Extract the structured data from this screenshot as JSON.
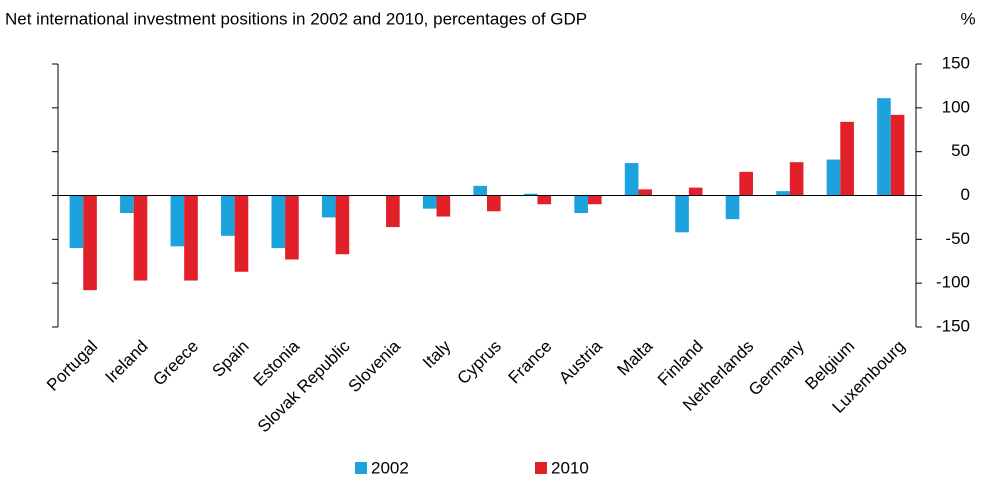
{
  "chart_data": {
    "type": "bar",
    "title": "Net international investment positions in 2002 and 2010, percentages of GDP",
    "y_unit": "%",
    "categories": [
      "Portugal",
      "Ireland",
      "Greece",
      "Spain",
      "Estonia",
      "Slovak Republic",
      "Slovenia",
      "Italy",
      "Cyprus",
      "France",
      "Austria",
      "Malta",
      "Finland",
      "Netherlands",
      "Germany",
      "Belgium",
      "Luxembourg"
    ],
    "series": [
      {
        "name": "2002",
        "color": "#1ca3dd",
        "values": [
          -60,
          -20,
          -58,
          -46,
          -60,
          -25,
          0,
          -15,
          11,
          2,
          -20,
          37,
          -42,
          -27,
          5,
          41,
          111
        ]
      },
      {
        "name": "2010",
        "color": "#e2202a",
        "values": [
          -108,
          -97,
          -97,
          -87,
          -73,
          -67,
          -36,
          -24,
          -18,
          -10,
          -10,
          7,
          9,
          27,
          38,
          84,
          92
        ]
      }
    ],
    "ylim": [
      -150,
      150
    ],
    "yticks": [
      -150,
      -100,
      -50,
      0,
      50,
      100,
      150
    ],
    "legend": "bottom"
  }
}
